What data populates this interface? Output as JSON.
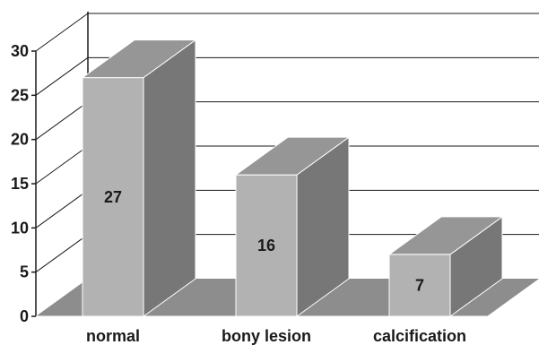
{
  "chart_data": {
    "type": "bar",
    "categories": [
      "normal",
      "bony lesion",
      "calcification"
    ],
    "values": [
      27,
      16,
      7
    ],
    "ylim": [
      0,
      30
    ],
    "yticks": [
      0,
      5,
      10,
      15,
      20,
      25,
      30
    ],
    "grid": true,
    "style": "3d",
    "colors": {
      "bar_front": "#b2b2b2",
      "bar_top": "#969696",
      "bar_side": "#777777",
      "floor": "#8d8d8d",
      "axis": "#1a1a1a"
    }
  }
}
